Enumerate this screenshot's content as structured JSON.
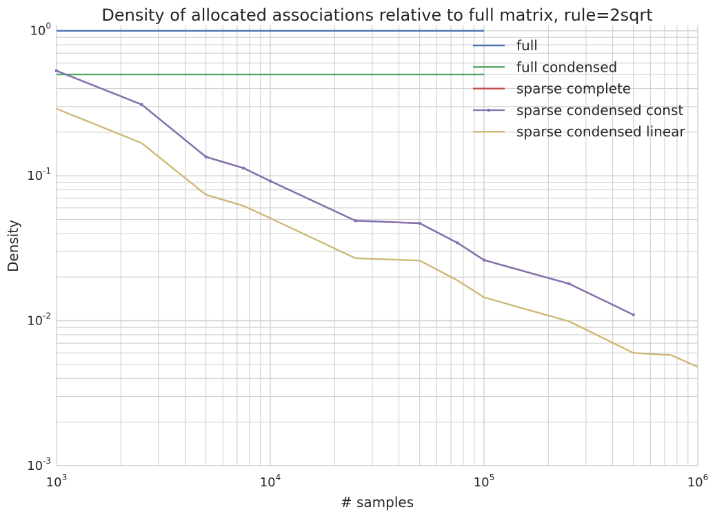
{
  "chart_data": {
    "type": "line",
    "title": "Density of allocated associations relative to full matrix, rule=2sqrt",
    "xlabel": "# samples",
    "ylabel": "Density",
    "xscale": "log",
    "yscale": "log",
    "xlim": [
      1000,
      1000000
    ],
    "ylim": [
      0.001,
      1.1
    ],
    "x_ticks": [
      {
        "base": "10",
        "exp": "3",
        "value": 1000
      },
      {
        "base": "10",
        "exp": "4",
        "value": 10000
      },
      {
        "base": "10",
        "exp": "5",
        "value": 100000
      },
      {
        "base": "10",
        "exp": "6",
        "value": 1000000
      }
    ],
    "y_ticks": [
      {
        "base": "10",
        "exp": "-3",
        "value": 0.001
      },
      {
        "base": "10",
        "exp": "-2",
        "value": 0.01
      },
      {
        "base": "10",
        "exp": "-1",
        "value": 0.1
      },
      {
        "base": "10",
        "exp": "0",
        "value": 1
      }
    ],
    "grid": true,
    "legend_position": "top-right",
    "series": [
      {
        "name": "full",
        "color": "#4c72b0",
        "markers": false,
        "x": [
          1000,
          100000
        ],
        "y": [
          1.0,
          1.0
        ]
      },
      {
        "name": "full condensed",
        "color": "#55a868",
        "markers": false,
        "x": [
          1000,
          100000
        ],
        "y": [
          0.5,
          0.5
        ]
      },
      {
        "name": "sparse complete",
        "color": "#c44e52",
        "markers": false,
        "x": [
          1000,
          2500,
          5000,
          7500,
          10000,
          25000,
          50000,
          75000,
          100000,
          250000,
          500000
        ],
        "y": [
          0.53,
          0.31,
          0.135,
          0.113,
          0.092,
          0.049,
          0.047,
          0.0345,
          0.0262,
          0.018,
          0.011
        ]
      },
      {
        "name": "sparse condensed const",
        "color": "#8172b2",
        "markers": true,
        "x": [
          1000,
          2500,
          5000,
          7500,
          10000,
          25000,
          50000,
          75000,
          100000,
          250000,
          500000
        ],
        "y": [
          0.53,
          0.31,
          0.135,
          0.113,
          0.092,
          0.049,
          0.047,
          0.0345,
          0.0262,
          0.018,
          0.011
        ]
      },
      {
        "name": "sparse condensed linear",
        "color": "#ccb974",
        "markers": false,
        "x": [
          1000,
          2500,
          5000,
          7500,
          10000,
          25000,
          50000,
          75000,
          100000,
          250000,
          500000,
          750000,
          1000000
        ],
        "y": [
          0.29,
          0.168,
          0.074,
          0.062,
          0.051,
          0.027,
          0.026,
          0.019,
          0.0145,
          0.0099,
          0.006,
          0.0058,
          0.0048
        ]
      }
    ]
  }
}
